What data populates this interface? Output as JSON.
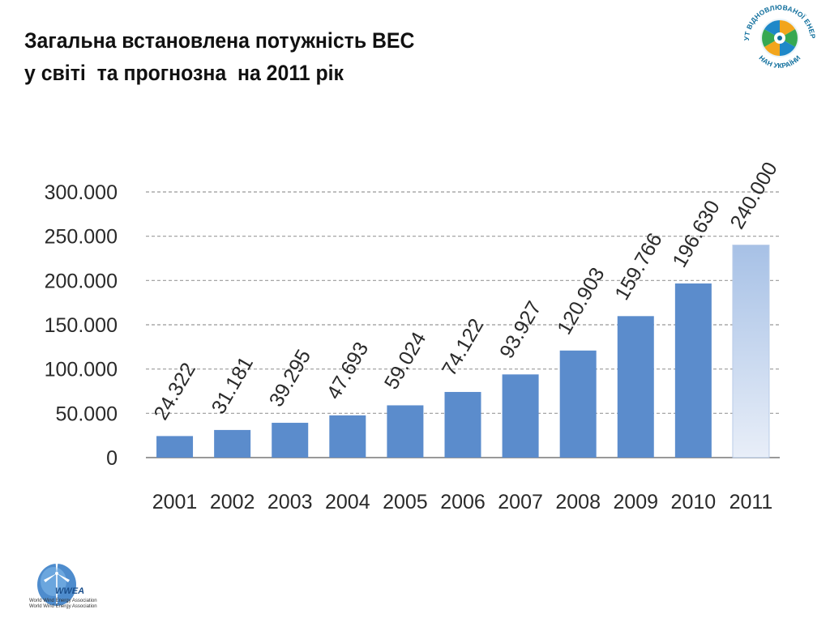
{
  "title_lines": [
    "Загальна встановлена потужність ВЕС",
    "у світі  та прогнозна  на 2011 рік"
  ],
  "logos": {
    "institute": {
      "icon": "institute-logo-icon",
      "text_top": "ІНСТИТУТ ВІДНОВЛЮВАНОЇ ЕНЕРГЕТИКИ",
      "text_bottom": "НАН УКРАЇНИ"
    },
    "wwea": {
      "icon": "wind-turbine-logo-icon",
      "name": "WWEA",
      "subtitle_lines": [
        "World Wind Energy Association",
        "World Wind Energy Association"
      ]
    }
  },
  "colors": {
    "bar": "#5b8ccc",
    "forecast_top": "#a7c1e6",
    "forecast_bottom": "#e8eef8",
    "grid": "#999999"
  },
  "chart_data": {
    "type": "bar",
    "categories": [
      "2001",
      "2002",
      "2003",
      "2004",
      "2005",
      "2006",
      "2007",
      "2008",
      "2009",
      "2010",
      "2011"
    ],
    "values": [
      24322,
      31181,
      39295,
      47693,
      59024,
      74122,
      93927,
      120903,
      159766,
      196630,
      240000
    ],
    "data_labels": [
      "24.322",
      "31.181",
      "39.295",
      "47.693",
      "59.024",
      "74.122",
      "93.927",
      "120.903",
      "159.766",
      "196.630",
      "240.000"
    ],
    "forecast_index": 10,
    "ylim": [
      0,
      300000
    ],
    "yticks": [
      0,
      50000,
      100000,
      150000,
      200000,
      250000,
      300000
    ],
    "ytick_labels": [
      "0",
      "50.000",
      "100.000",
      "150.000",
      "200.000",
      "250.000",
      "300.000"
    ],
    "grid": true
  }
}
